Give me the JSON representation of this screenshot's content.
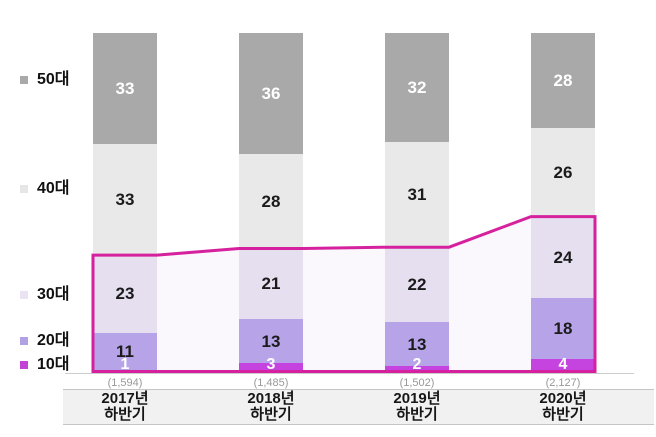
{
  "legend": {
    "items": [
      {
        "label": "50대",
        "color": "#a9a9a9"
      },
      {
        "label": "40대",
        "color": "#e6e6e6"
      },
      {
        "label": "30대",
        "color": "#e9e3f3"
      },
      {
        "label": "20대",
        "color": "#b2a0e5"
      },
      {
        "label": "10대",
        "color": "#c243d6"
      }
    ]
  },
  "chart_data": {
    "type": "bar",
    "stacked": true,
    "percent_based": true,
    "categories": [
      {
        "line1": "2017년",
        "line2": "하반기"
      },
      {
        "line1": "2018년",
        "line2": "하반기"
      },
      {
        "line1": "2019년",
        "line2": "하반기"
      },
      {
        "line1": "2020년",
        "line2": "하반기"
      }
    ],
    "totals": [
      "(1,594)",
      "(1,485)",
      "(1,502)",
      "(2,127)"
    ],
    "series": [
      {
        "name": "50대",
        "color": "#a9a9a9",
        "text_color": "#ffffff",
        "values": [
          33,
          36,
          32,
          28
        ]
      },
      {
        "name": "40대",
        "color": "#e9e9e9",
        "text_color": "#1b1b1b",
        "values": [
          33,
          28,
          31,
          26
        ]
      },
      {
        "name": "30대",
        "color": "#e6dff0",
        "text_color": "#1b1b1b",
        "values": [
          23,
          21,
          22,
          24
        ]
      },
      {
        "name": "20대",
        "color": "#b7a4e8",
        "text_color": "#1b1b1b",
        "values": [
          11,
          13,
          13,
          18
        ]
      },
      {
        "name": "10대",
        "color": "#c544e0",
        "text_color": "#ffffff",
        "values": [
          1,
          3,
          2,
          4
        ]
      }
    ],
    "highlight": {
      "covers_series": [
        "30대",
        "20대",
        "10대"
      ],
      "line_color": "#d6219e",
      "fill_color": "#faf7fd"
    },
    "legend_position": "left",
    "grid": false,
    "axis_band_color": "#f1f1f1"
  }
}
